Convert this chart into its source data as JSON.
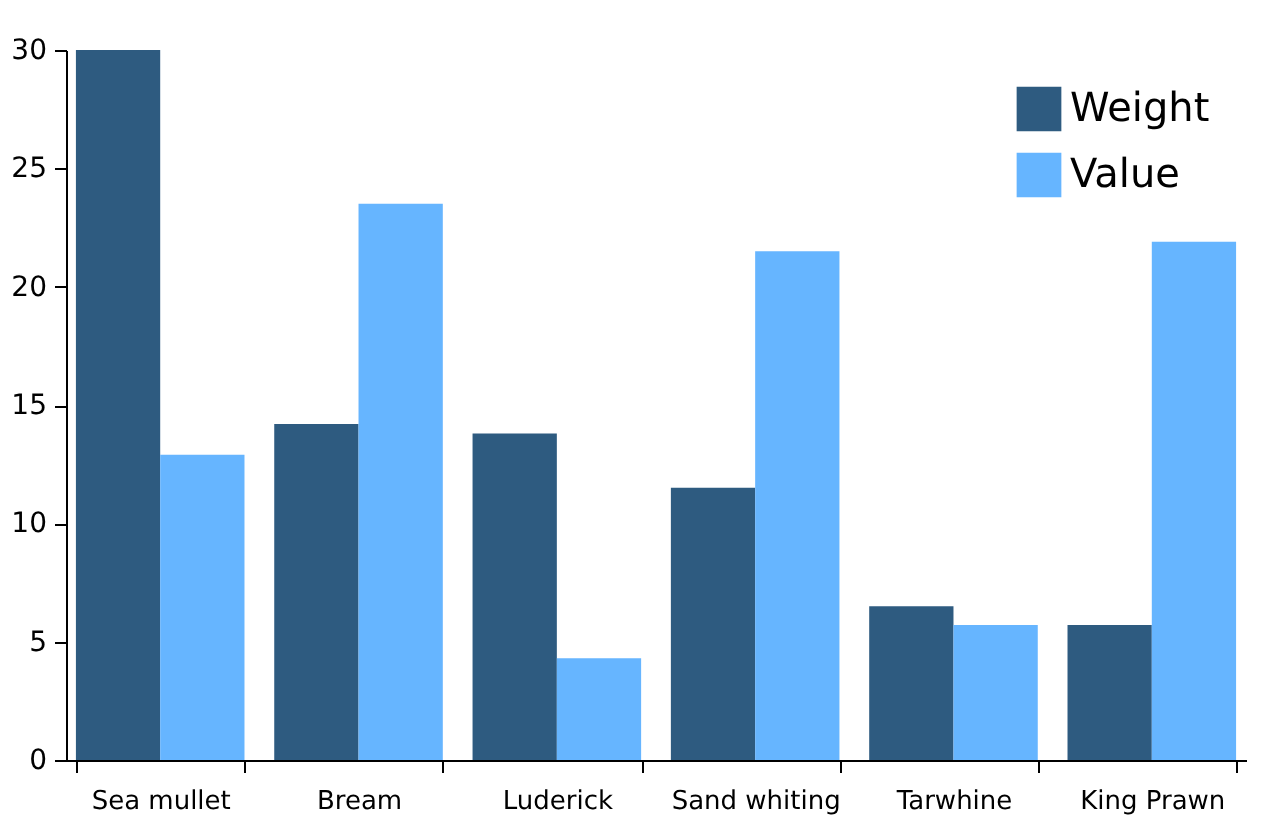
{
  "chart_data": {
    "type": "bar",
    "categories": [
      "Sea mullet",
      "Bream",
      "Luderick",
      "Sand whiting",
      "Tarwhine",
      "King Prawn"
    ],
    "series": [
      {
        "name": "Weight",
        "color": "#2e5b80",
        "values": [
          30,
          14.2,
          13.8,
          11.5,
          6.5,
          5.7
        ]
      },
      {
        "name": "Value",
        "color": "#66b5ff",
        "values": [
          12.9,
          23.5,
          4.3,
          21.5,
          5.7,
          21.9
        ]
      }
    ],
    "ylim": [
      0,
      30
    ],
    "yticks": [
      0,
      5,
      10,
      15,
      20,
      25,
      30
    ],
    "grid": false,
    "legend": "top right"
  }
}
